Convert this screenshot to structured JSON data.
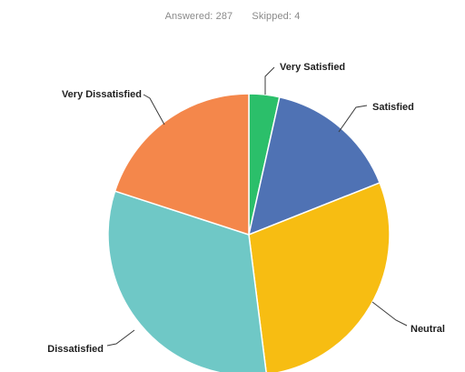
{
  "summary": {
    "answered_label": "Answered:",
    "answered_value": "287",
    "skipped_label": "Skipped:",
    "skipped_value": "4"
  },
  "chart_data": {
    "type": "pie",
    "title": "",
    "categories": [
      "Very Satisfied",
      "Satisfied",
      "Neutral",
      "Dissatisfied",
      "Very Dissatisfied"
    ],
    "values": [
      3.5,
      15.5,
      29,
      32,
      20
    ],
    "unit": "%",
    "colors": [
      "#2bbf6a",
      "#4f72b4",
      "#f7bd12",
      "#6fc8c6",
      "#f4874b"
    ],
    "start_angle_deg": 0,
    "direction": "clockwise",
    "legend": "none",
    "labels_outside": true
  }
}
